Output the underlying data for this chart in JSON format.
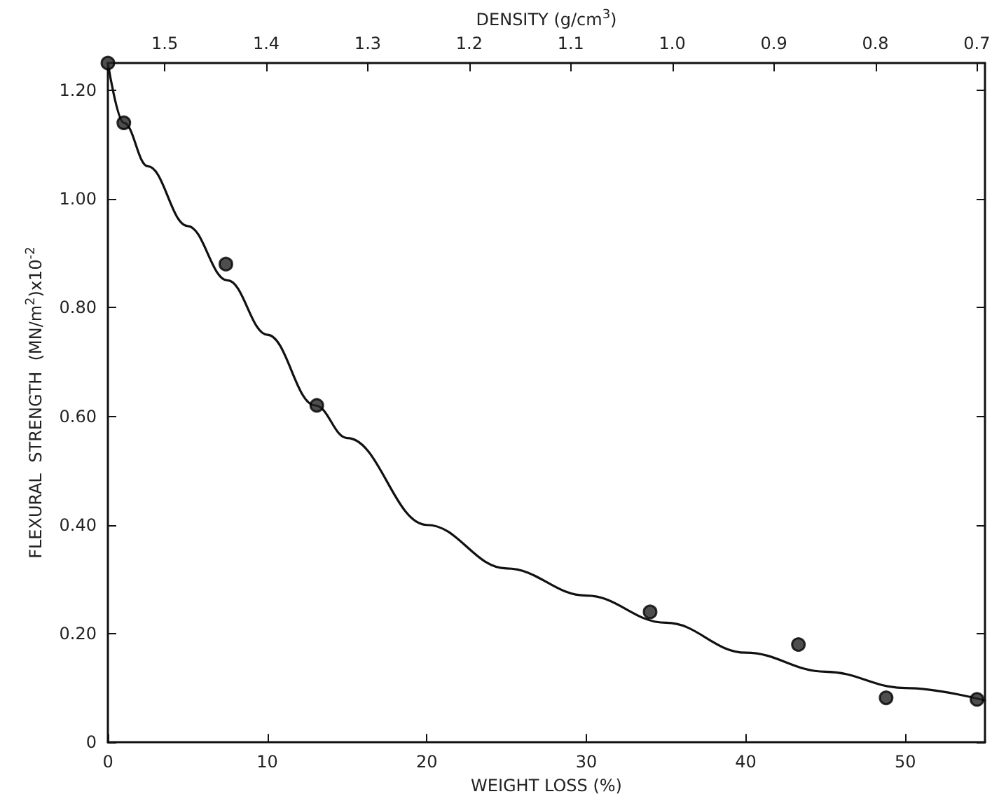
{
  "chart_data": {
    "type": "scatter",
    "xlabel": "WEIGHT LOSS (%)",
    "ylabel": "FLEXURAL  STRENGTH  (MN/m$^{2}$)x10$^{-2}$",
    "x2label": "DENSITY (g/cm$^{3}$)",
    "xlim": [
      0,
      55
    ],
    "xticks": [
      0,
      10,
      20,
      30,
      40,
      50
    ],
    "x2lim": [
      1.556,
      0.692
    ],
    "x2ticks": [
      {
        "value": 1.5,
        "label": "1.5"
      },
      {
        "value": 1.4,
        "label": "1.4"
      },
      {
        "value": 1.3,
        "label": "1.3"
      },
      {
        "value": 1.2,
        "label": "1.2"
      },
      {
        "value": 1.1,
        "label": "1.1"
      },
      {
        "value": 1.0,
        "label": "1.0"
      },
      {
        "value": 0.9,
        "label": "0.9"
      },
      {
        "value": 0.8,
        "label": "0.8"
      },
      {
        "value": 0.7,
        "label": "0.7"
      }
    ],
    "ylim": [
      0,
      1.25
    ],
    "yticks": [
      0,
      {
        "value": 0.2,
        "label": "0.20"
      },
      {
        "value": 0.4,
        "label": "0.40"
      },
      {
        "value": 0.6,
        "label": "0.60"
      },
      {
        "value": 0.8,
        "label": "0.80"
      },
      {
        "value": 1.0,
        "label": "1.00"
      },
      {
        "value": 1.2,
        "label": "1.20"
      }
    ],
    "grid": false,
    "series": [
      {
        "color": "#222222",
        "marker": "circle",
        "x": [
          0,
          1,
          7.4,
          13.1,
          34,
          43.3,
          48.8,
          54.5
        ],
        "values": [
          1.25,
          1.14,
          0.88,
          0.62,
          0.24,
          0.18,
          0.082,
          0.079
        ]
      },
      {
        "type": "line",
        "color": "#111111",
        "marker": "none",
        "line_style": "solid",
        "x": [
          0,
          1,
          2.5,
          5,
          7.5,
          10,
          13,
          15,
          20,
          25,
          30,
          35,
          40,
          45,
          50,
          55
        ],
        "values": [
          1.25,
          1.14,
          1.06,
          0.95,
          0.85,
          0.75,
          0.62,
          0.56,
          0.4,
          0.32,
          0.27,
          0.22,
          0.165,
          0.13,
          0.1,
          0.077
        ]
      }
    ]
  }
}
